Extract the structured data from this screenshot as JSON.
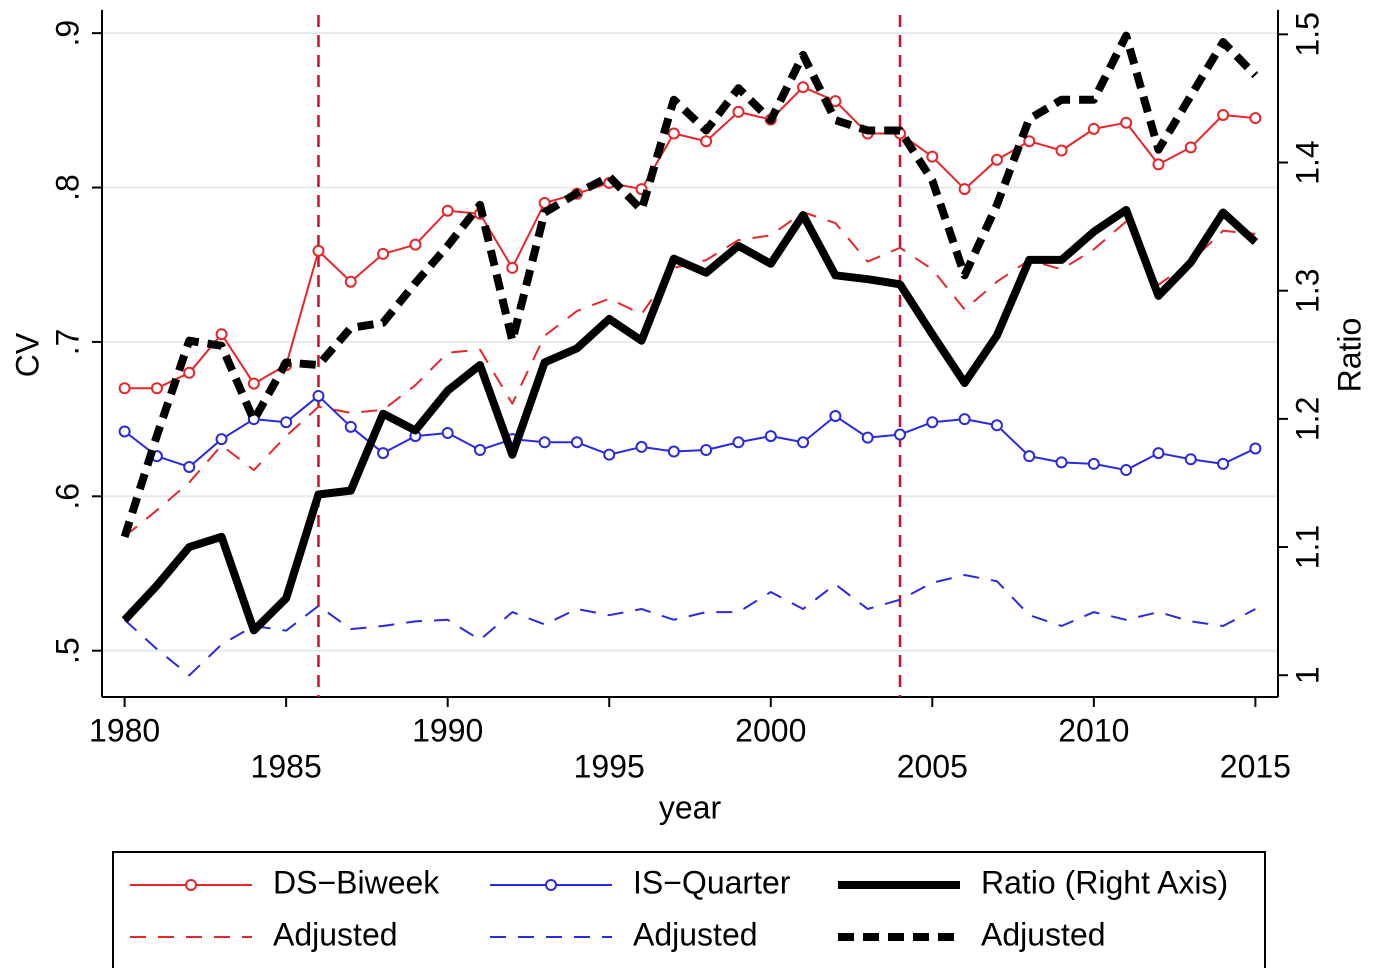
{
  "chart_data": {
    "type": "line",
    "x_label": "year",
    "y_label": "CV",
    "y2_label": "Ratio",
    "x": [
      1980,
      1981,
      1982,
      1983,
      1984,
      1985,
      1986,
      1987,
      1988,
      1989,
      1990,
      1991,
      1992,
      1993,
      1994,
      1995,
      1996,
      1997,
      1998,
      1999,
      2000,
      2001,
      2002,
      2003,
      2004,
      2005,
      2006,
      2007,
      2008,
      2009,
      2010,
      2011,
      2012,
      2013,
      2014,
      2015
    ],
    "xlim": [
      1979.3,
      2015.7
    ],
    "xticks": [
      1980,
      1985,
      1990,
      1995,
      2000,
      2005,
      2010,
      2015
    ],
    "ylim": [
      0.47,
      0.915
    ],
    "yticks": [
      {
        "value": 0.5,
        "label": ".5"
      },
      {
        "value": 0.6,
        "label": ".6"
      },
      {
        "value": 0.7,
        "label": ".7"
      },
      {
        "value": 0.8,
        "label": ".8"
      },
      {
        "value": 0.9,
        "label": ".9"
      }
    ],
    "y2lim": [
      0.983,
      1.519
    ],
    "y2ticks": [
      1,
      1.1,
      1.2,
      1.3,
      1.4,
      1.5
    ],
    "grid": true,
    "vlines": [
      1986,
      2004
    ],
    "vline_color": "#c8102e",
    "series": [
      {
        "name": "DS−Biweek",
        "color": "#e8262a",
        "line_style": "solid",
        "markers": true,
        "values": [
          0.67,
          0.67,
          0.68,
          0.705,
          0.673,
          0.685,
          0.759,
          0.739,
          0.757,
          0.763,
          0.785,
          0.783,
          0.748,
          0.79,
          0.796,
          0.803,
          0.799,
          0.835,
          0.83,
          0.849,
          0.844,
          0.865,
          0.856,
          0.835,
          0.835,
          0.82,
          0.799,
          0.818,
          0.83,
          0.824,
          0.838,
          0.842,
          0.815,
          0.826,
          0.847,
          0.845
        ]
      },
      {
        "name": "Adjusted",
        "color": "#e8262a",
        "line_style": "dashed",
        "markers": false,
        "values": [
          0.574,
          0.591,
          0.609,
          0.633,
          0.617,
          0.639,
          0.658,
          0.654,
          0.656,
          0.672,
          0.693,
          0.695,
          0.66,
          0.704,
          0.72,
          0.728,
          0.718,
          0.748,
          0.753,
          0.766,
          0.769,
          0.784,
          0.777,
          0.752,
          0.761,
          0.747,
          0.721,
          0.739,
          0.753,
          0.747,
          0.76,
          0.778,
          0.737,
          0.752,
          0.772,
          0.77
        ]
      },
      {
        "name": "IS−Quarter",
        "color": "#2a2ae0",
        "line_style": "solid",
        "markers": true,
        "values": [
          0.642,
          0.626,
          0.619,
          0.637,
          0.65,
          0.648,
          0.665,
          0.645,
          0.628,
          0.639,
          0.641,
          0.63,
          0.637,
          0.635,
          0.635,
          0.627,
          0.632,
          0.629,
          0.63,
          0.635,
          0.639,
          0.635,
          0.652,
          0.638,
          0.64,
          0.648,
          0.65,
          0.646,
          0.626,
          0.622,
          0.621,
          0.617,
          0.628,
          0.624,
          0.621,
          0.631
        ]
      },
      {
        "name": "Adjusted",
        "color": "#2a2ae0",
        "line_style": "dashed",
        "markers": false,
        "values": [
          0.52,
          0.501,
          0.484,
          0.504,
          0.516,
          0.513,
          0.529,
          0.514,
          0.516,
          0.519,
          0.52,
          0.507,
          0.525,
          0.517,
          0.527,
          0.523,
          0.527,
          0.52,
          0.525,
          0.525,
          0.538,
          0.527,
          0.543,
          0.527,
          0.533,
          0.544,
          0.549,
          0.545,
          0.523,
          0.516,
          0.525,
          0.52,
          0.525,
          0.519,
          0.516,
          0.527
        ]
      },
      {
        "name": "Ratio (Right Axis)",
        "color": "#000000",
        "line_style": "solid",
        "markers": false,
        "axis": "y2",
        "values": [
          1.043,
          1.07,
          1.1,
          1.108,
          1.035,
          1.06,
          1.141,
          1.144,
          1.204,
          1.191,
          1.222,
          1.242,
          1.172,
          1.244,
          1.255,
          1.278,
          1.261,
          1.325,
          1.314,
          1.335,
          1.321,
          1.359,
          1.312,
          1.309,
          1.305,
          1.266,
          1.228,
          1.265,
          1.324,
          1.324,
          1.346,
          1.363,
          1.296,
          1.322,
          1.361,
          1.338
        ]
      },
      {
        "name": "Adjusted",
        "color": "#000000",
        "line_style": "dashed",
        "markers": false,
        "axis": "y2",
        "values": [
          1.108,
          1.187,
          1.261,
          1.257,
          1.199,
          1.244,
          1.242,
          1.271,
          1.275,
          1.306,
          1.335,
          1.367,
          1.261,
          1.361,
          1.376,
          1.389,
          1.363,
          1.449,
          1.425,
          1.458,
          1.433,
          1.484,
          1.433,
          1.425,
          1.425,
          1.386,
          1.312,
          1.367,
          1.434,
          1.449,
          1.449,
          1.499,
          1.41,
          1.452,
          1.494,
          1.468
        ]
      }
    ]
  }
}
